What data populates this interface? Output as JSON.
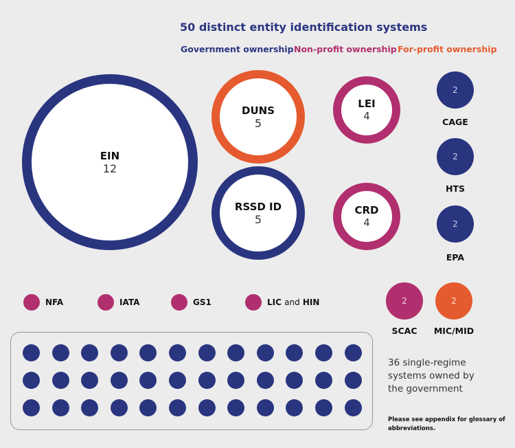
{
  "title": "50 distinct entity identification systems",
  "legend": [
    {
      "label": "Government ownership",
      "color": "#2a3580"
    },
    {
      "label": "Non-profit ownership",
      "color": "#b12f6e"
    },
    {
      "label": "For-profit ownership",
      "color": "#e55b2f"
    }
  ],
  "large": [
    {
      "name": "EIN",
      "count": "12",
      "owner": "government"
    },
    {
      "name": "DUNS",
      "count": "5",
      "owner": "for-profit"
    },
    {
      "name": "RSSD ID",
      "count": "5",
      "owner": "government"
    },
    {
      "name": "LEI",
      "count": "4",
      "owner": "non-profit"
    },
    {
      "name": "CRD",
      "count": "4",
      "owner": "non-profit"
    }
  ],
  "small": [
    {
      "name": "CAGE",
      "count": "2",
      "owner": "government"
    },
    {
      "name": "HTS",
      "count": "2",
      "owner": "government"
    },
    {
      "name": "EPA",
      "count": "2",
      "owner": "government"
    },
    {
      "name": "SCAC",
      "count": "2",
      "owner": "non-profit"
    },
    {
      "name": "MIC/MID",
      "count": "2",
      "owner": "for-profit"
    }
  ],
  "singles": [
    {
      "name": "NFA"
    },
    {
      "name": "IATA"
    },
    {
      "name": "GS1"
    },
    {
      "name": "LIC",
      "join": "and",
      "name2": "HIN"
    }
  ],
  "single_regime": {
    "count": 36,
    "text": "36 single-regime systems owned by the government"
  },
  "note": "Please see appendix for glossary of abbreviations."
}
